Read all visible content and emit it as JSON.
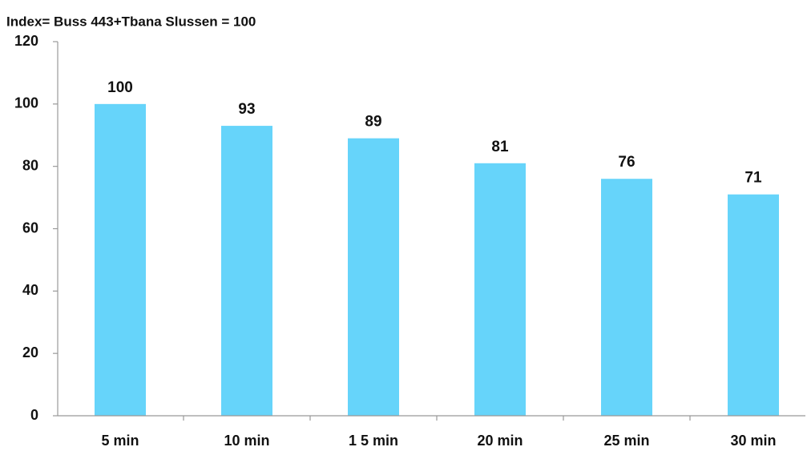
{
  "chart_data": {
    "type": "bar",
    "title": "Index= Buss 443+Tbana Slussen = 100",
    "categories": [
      "5 min",
      "10 min",
      "1 5 min",
      "20 min",
      "25 min",
      "30 min"
    ],
    "values": [
      100,
      93,
      89,
      81,
      76,
      71
    ],
    "color": "#66d4fa",
    "ylim": [
      0,
      120
    ],
    "yticks": [
      0,
      20,
      40,
      60,
      80,
      100,
      120
    ],
    "grid": false
  }
}
